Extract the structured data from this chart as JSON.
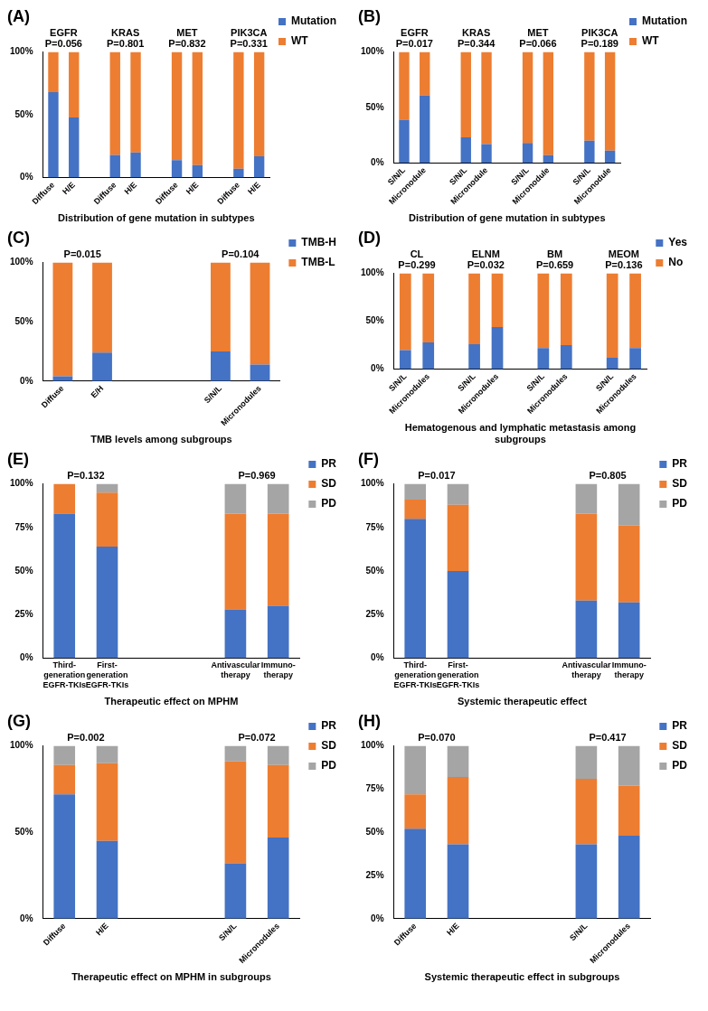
{
  "chart_data": [
    {
      "type": "bar",
      "stacked": true,
      "title": "(A)",
      "xlabel": "Distribution of gene mutation in subtypes",
      "categories": [
        "Diffuse",
        "H/E",
        null,
        "Diffuse",
        "H/E",
        null,
        "Diffuse",
        "H/E",
        null,
        "Diffuse",
        "H/E"
      ],
      "series": [
        {
          "name": "Mutation",
          "color": "#4472c4",
          "values": [
            68,
            48,
            null,
            18,
            20,
            null,
            14,
            10,
            null,
            7,
            17
          ]
        },
        {
          "name": "WT",
          "color": "#ed7d31",
          "values": [
            32,
            52,
            null,
            82,
            80,
            null,
            86,
            90,
            null,
            93,
            83
          ]
        }
      ],
      "ylim": [
        0,
        100
      ],
      "yticks": [
        {
          "value": 0,
          "label": "0%"
        },
        {
          "value": 50,
          "label": "50%"
        },
        {
          "value": 100,
          "label": "100%"
        }
      ],
      "legend": "top right",
      "annotations": [
        "EGFR P=0.056",
        "KRAS P=0.801",
        "MET P=0.832",
        "PIK3CA P=0.331"
      ]
    },
    {
      "type": "bar",
      "stacked": true,
      "title": "(B)",
      "xlabel": "Distribution of gene mutation in subtypes",
      "categories": [
        "S/N/L",
        "Micronodule",
        null,
        "S/N/L",
        "Micronodule",
        null,
        "S/N/L",
        "Micronodule",
        null,
        "S/N/L",
        "Micronodule"
      ],
      "series": [
        {
          "name": "Mutation",
          "color": "#4472c4",
          "values": [
            39,
            61,
            null,
            23,
            17,
            null,
            18,
            7,
            null,
            20,
            11
          ]
        },
        {
          "name": "WT",
          "color": "#ed7d31",
          "values": [
            61,
            39,
            null,
            77,
            83,
            null,
            82,
            93,
            null,
            80,
            89
          ]
        }
      ],
      "ylim": [
        0,
        100
      ],
      "yticks": [
        {
          "value": 0,
          "label": "0%"
        },
        {
          "value": 50,
          "label": "50%"
        },
        {
          "value": 100,
          "label": "100%"
        }
      ],
      "legend": "top right",
      "annotations": [
        "EGFR P=0.017",
        "KRAS P=0.344",
        "MET P=0.066",
        "PIK3CA P=0.189"
      ]
    },
    {
      "type": "bar",
      "stacked": true,
      "title": "(C)",
      "xlabel": "TMB levels among subgroups",
      "categories": [
        "Diffuse",
        "E/H",
        null,
        null,
        "S/N/L",
        "Micronodules"
      ],
      "series": [
        {
          "name": "TMB-H",
          "color": "#4472c4",
          "values": [
            4,
            24,
            null,
            null,
            25,
            14
          ]
        },
        {
          "name": "TMB-L",
          "color": "#ed7d31",
          "values": [
            96,
            76,
            null,
            null,
            75,
            86
          ]
        }
      ],
      "ylim": [
        0,
        100
      ],
      "yticks": [
        {
          "value": 0,
          "label": "0%"
        },
        {
          "value": 50,
          "label": "50%"
        },
        {
          "value": 100,
          "label": "100%"
        }
      ],
      "legend": "top right",
      "annotations": [
        "P=0.015",
        "P=0.104"
      ]
    },
    {
      "type": "bar",
      "stacked": true,
      "title": "(D)",
      "xlabel": "Hematogenous and lymphatic metastasis among subgroups",
      "categories": [
        "S/N/L",
        "Micronodules",
        null,
        "S/N/L",
        "Micronodules",
        null,
        "S/N/L",
        "Micronodules",
        null,
        "S/N/L",
        "Micronodules"
      ],
      "series": [
        {
          "name": "Yes",
          "color": "#4472c4",
          "values": [
            20,
            28,
            null,
            26,
            44,
            null,
            22,
            25,
            null,
            12,
            22
          ]
        },
        {
          "name": "No",
          "color": "#ed7d31",
          "values": [
            80,
            72,
            null,
            74,
            56,
            null,
            78,
            75,
            null,
            88,
            78
          ]
        }
      ],
      "ylim": [
        0,
        100
      ],
      "yticks": [
        {
          "value": 0,
          "label": "0%"
        },
        {
          "value": 50,
          "label": "50%"
        },
        {
          "value": 100,
          "label": "100%"
        }
      ],
      "legend": "top right",
      "annotations": [
        "CL P=0.299",
        "ELNM P=0.032",
        "BM P=0.659",
        "MEOM P=0.136"
      ]
    },
    {
      "type": "bar",
      "stacked": true,
      "title": "(E)",
      "xlabel": "Therapeutic effect on MPHM",
      "categories": [
        "Third-generation EGFR-TKIs",
        "First-generation EGFR-TKIs",
        null,
        null,
        "Antivascular therapy",
        "Immuno-therapy"
      ],
      "series": [
        {
          "name": "PR",
          "color": "#4472c4",
          "values": [
            83,
            64,
            null,
            null,
            28,
            30
          ]
        },
        {
          "name": "SD",
          "color": "#ed7d31",
          "values": [
            17,
            31,
            null,
            null,
            55,
            53
          ]
        },
        {
          "name": "PD",
          "color": "#a5a5a5",
          "values": [
            0,
            5,
            null,
            null,
            17,
            17
          ]
        }
      ],
      "ylim": [
        0,
        100
      ],
      "yticks": [
        {
          "value": 0,
          "label": "0%"
        },
        {
          "value": 25,
          "label": "25%"
        },
        {
          "value": 50,
          "label": "50%"
        },
        {
          "value": 75,
          "label": "75%"
        },
        {
          "value": 100,
          "label": "100%"
        }
      ],
      "legend": "top right",
      "annotations": [
        "P=0.132",
        "P=0.969"
      ]
    },
    {
      "type": "bar",
      "stacked": true,
      "title": "(F)",
      "xlabel": "Systemic therapeutic effect",
      "categories": [
        "Third-generation EGFR-TKIs",
        "First-generation EGFR-TKIs",
        null,
        null,
        "Antivascular therapy",
        "Immuno-therapy"
      ],
      "series": [
        {
          "name": "PR",
          "color": "#4472c4",
          "values": [
            80,
            50,
            null,
            null,
            33,
            32
          ]
        },
        {
          "name": "SD",
          "color": "#ed7d31",
          "values": [
            11,
            38,
            null,
            null,
            50,
            44
          ]
        },
        {
          "name": "PD",
          "color": "#a5a5a5",
          "values": [
            9,
            12,
            null,
            null,
            17,
            24
          ]
        }
      ],
      "ylim": [
        0,
        100
      ],
      "yticks": [
        {
          "value": 0,
          "label": "0%"
        },
        {
          "value": 25,
          "label": "25%"
        },
        {
          "value": 50,
          "label": "50%"
        },
        {
          "value": 75,
          "label": "75%"
        },
        {
          "value": 100,
          "label": "100%"
        }
      ],
      "legend": "top right",
      "annotations": [
        "P=0.017",
        "P=0.805"
      ]
    },
    {
      "type": "bar",
      "stacked": true,
      "title": "(G)",
      "xlabel": "Therapeutic effect on MPHM in subgroups",
      "categories": [
        "Diffuse",
        "H/E",
        null,
        null,
        "S/N/L",
        "Micronodules"
      ],
      "series": [
        {
          "name": "PR",
          "color": "#4472c4",
          "values": [
            72,
            45,
            null,
            null,
            32,
            47
          ]
        },
        {
          "name": "SD",
          "color": "#ed7d31",
          "values": [
            17,
            45,
            null,
            null,
            59,
            42
          ]
        },
        {
          "name": "PD",
          "color": "#a5a5a5",
          "values": [
            11,
            10,
            null,
            null,
            9,
            11
          ]
        }
      ],
      "ylim": [
        0,
        100
      ],
      "yticks": [
        {
          "value": 0,
          "label": "0%"
        },
        {
          "value": 50,
          "label": "50%"
        },
        {
          "value": 100,
          "label": "100%"
        }
      ],
      "legend": "top right",
      "annotations": [
        "P=0.002",
        "P=0.072"
      ]
    },
    {
      "type": "bar",
      "stacked": true,
      "title": "(H)",
      "xlabel": "Systemic therapeutic effect in subgroups",
      "categories": [
        "Diffuse",
        "H/E",
        null,
        null,
        "S/N/L",
        "Micronodules"
      ],
      "series": [
        {
          "name": "PR",
          "color": "#4472c4",
          "values": [
            52,
            43,
            null,
            null,
            43,
            48
          ]
        },
        {
          "name": "SD",
          "color": "#ed7d31",
          "values": [
            20,
            39,
            null,
            null,
            38,
            29
          ]
        },
        {
          "name": "PD",
          "color": "#a5a5a5",
          "values": [
            28,
            18,
            null,
            null,
            19,
            23
          ]
        }
      ],
      "ylim": [
        0,
        100
      ],
      "yticks": [
        {
          "value": 0,
          "label": "0%"
        },
        {
          "value": 25,
          "label": "25%"
        },
        {
          "value": 50,
          "label": "50%"
        },
        {
          "value": 75,
          "label": "75%"
        },
        {
          "value": 100,
          "label": "100%"
        }
      ],
      "legend": "top right",
      "annotations": [
        "P=0.070",
        "P=0.417"
      ]
    }
  ]
}
